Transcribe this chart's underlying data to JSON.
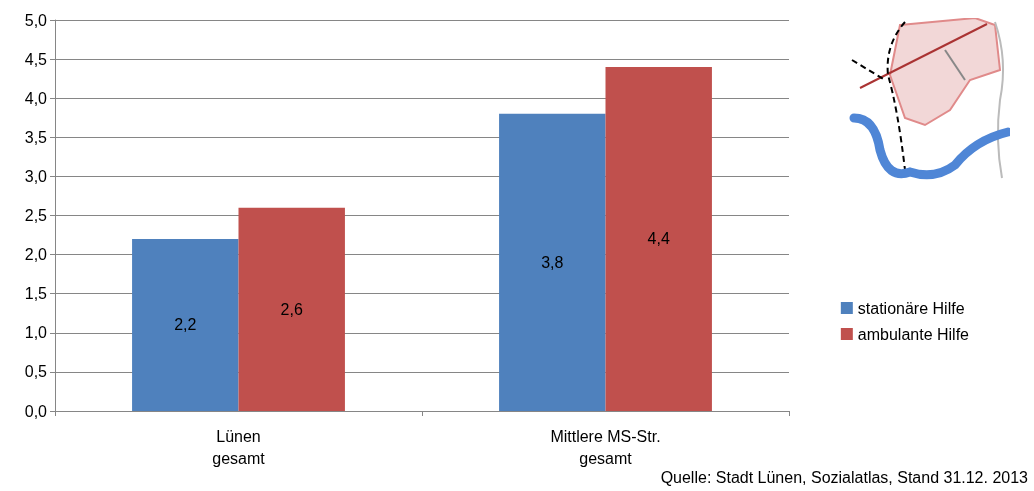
{
  "chart_data": {
    "type": "bar",
    "categories": [
      "Lünen\ngesamt",
      "Mittlere MS-Str.\ngesamt"
    ],
    "series": [
      {
        "name": "stationäre Hilfe",
        "color": "#4f81bd",
        "values": [
          2.2,
          3.8
        ],
        "value_labels": [
          "2,2",
          "3,8"
        ]
      },
      {
        "name": "ambulante Hilfe",
        "color": "#c0504d",
        "values": [
          2.6,
          4.4
        ],
        "value_labels": [
          "2,6",
          "4,4"
        ]
      }
    ],
    "ylim": [
      0,
      5
    ],
    "yticks": [
      {
        "value": 0,
        "label": "0,0"
      },
      {
        "value": 0.5,
        "label": "0,5"
      },
      {
        "value": 1,
        "label": "1,0"
      },
      {
        "value": 1.5,
        "label": "1,5"
      },
      {
        "value": 2,
        "label": "2,0"
      },
      {
        "value": 2.5,
        "label": "2,5"
      },
      {
        "value": 3,
        "label": "3,0"
      },
      {
        "value": 3.5,
        "label": "3,5"
      },
      {
        "value": 4,
        "label": "4,0"
      },
      {
        "value": 4.5,
        "label": "4,5"
      },
      {
        "value": 5,
        "label": "5,0"
      }
    ],
    "grid": "y",
    "legend": "right",
    "annotations": [
      "Quelle: Stadt Lünen, Sozialatlas, Stand 31.12. 2013"
    ]
  }
}
